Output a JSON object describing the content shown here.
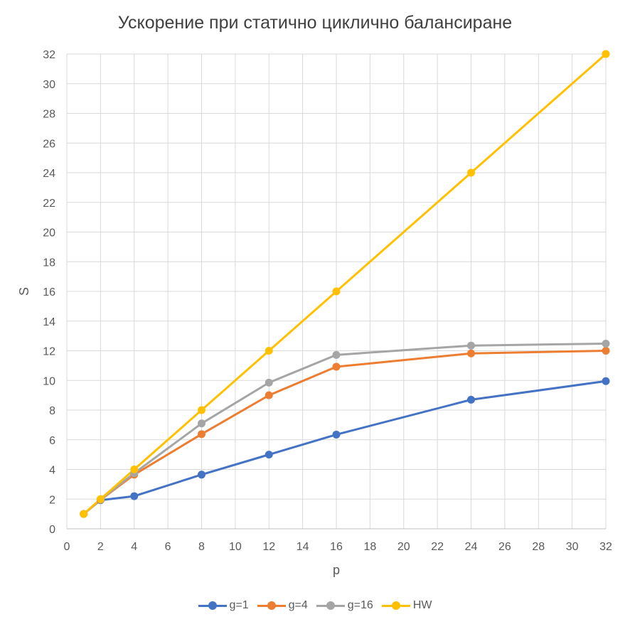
{
  "chart_data": {
    "type": "line",
    "title": "Ускорение при статично циклично балансиране",
    "xlabel": "p",
    "ylabel": "S",
    "xlim": [
      0,
      32
    ],
    "ylim": [
      0,
      32
    ],
    "xticks": [
      0,
      2,
      4,
      6,
      8,
      10,
      12,
      14,
      16,
      18,
      20,
      22,
      24,
      26,
      28,
      30,
      32
    ],
    "yticks": [
      0,
      2,
      4,
      6,
      8,
      10,
      12,
      14,
      16,
      18,
      20,
      22,
      24,
      26,
      28,
      30,
      32
    ],
    "grid": true,
    "legend_position": "bottom",
    "x": [
      1,
      2,
      4,
      8,
      12,
      16,
      24,
      32
    ],
    "series": [
      {
        "name": "g=1",
        "color": "#4472C4",
        "values": [
          1,
          1.93,
          2.2,
          3.65,
          5.0,
          6.35,
          8.7,
          9.95
        ]
      },
      {
        "name": "g=4",
        "color": "#ED7D31",
        "values": [
          1,
          1.95,
          3.65,
          6.38,
          9.0,
          10.92,
          11.82,
          12.0
        ]
      },
      {
        "name": "g=16",
        "color": "#A5A5A5",
        "values": [
          1,
          1.97,
          3.75,
          7.1,
          9.85,
          11.72,
          12.35,
          12.48
        ]
      },
      {
        "name": "HW",
        "color": "#FFC000",
        "values": [
          1,
          2,
          4,
          8,
          12,
          16,
          24,
          32
        ]
      }
    ]
  }
}
